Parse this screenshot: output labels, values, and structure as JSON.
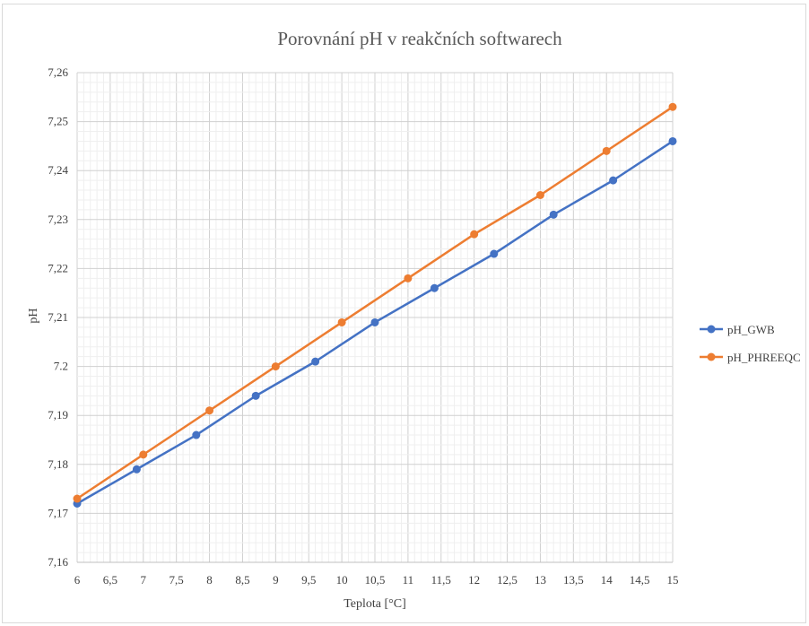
{
  "chart_data": {
    "type": "line",
    "title": "Porovnání pH v reakčních softwarech",
    "xlabel": "Teplota [°C]",
    "ylabel": "pH",
    "xlim": [
      6,
      15
    ],
    "ylim": [
      7.16,
      7.26
    ],
    "x_ticks": [
      "6",
      "6,5",
      "7",
      "7,5",
      "8",
      "8,5",
      "9",
      "9,5",
      "10",
      "10,5",
      "11",
      "11,5",
      "12",
      "12,5",
      "13",
      "13,5",
      "14",
      "14,5",
      "15"
    ],
    "y_ticks": [
      "7,16",
      "7,17",
      "7,18",
      "7,19",
      "7.2",
      "7,21",
      "7,22",
      "7,23",
      "7,24",
      "7,25",
      "7,26"
    ],
    "grid": true,
    "legend_position": "right",
    "series": [
      {
        "name": "pH_GWB",
        "color": "#4472c4",
        "x": [
          6,
          6.9,
          7.8,
          8.7,
          9.6,
          10.5,
          11.4,
          12.3,
          13.2,
          14.1,
          15
        ],
        "y": [
          7.172,
          7.179,
          7.186,
          7.194,
          7.201,
          7.209,
          7.216,
          7.223,
          7.231,
          7.238,
          7.246
        ]
      },
      {
        "name": "pH_PHREEQC",
        "color": "#ed7d31",
        "x": [
          6,
          7,
          8,
          9,
          10,
          11,
          12,
          13,
          14,
          15
        ],
        "y": [
          7.173,
          7.182,
          7.191,
          7.2,
          7.209,
          7.218,
          7.227,
          7.235,
          7.244,
          7.253
        ]
      }
    ]
  }
}
